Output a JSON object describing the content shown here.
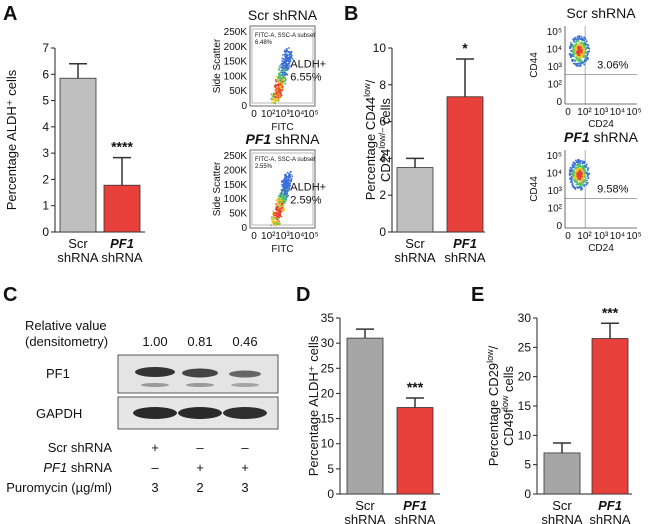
{
  "panels": {
    "A": "A",
    "B": "B",
    "C": "C",
    "D": "D",
    "E": "E"
  },
  "chart_data": [
    {
      "id": "A",
      "type": "bar",
      "ylabel": "Percentage ALDH⁺ cells",
      "ylim": [
        0,
        7
      ],
      "yticks": [
        "0",
        "1",
        "2",
        "3",
        "4",
        "5",
        "6",
        "7"
      ],
      "categories": [
        {
          "line1": "Scr",
          "line2": "shRNA",
          "italic": false
        },
        {
          "line1": "PF1",
          "line2": "shRNA",
          "italic": true
        }
      ],
      "values": [
        5.85,
        1.78
      ],
      "errors": [
        0.55,
        1.05
      ],
      "colors": [
        "#bfbfbf",
        "#e8403a"
      ],
      "significance": [
        "",
        "****"
      ]
    },
    {
      "id": "B",
      "type": "bar",
      "ylabel_parts": [
        "Percentage CD44",
        "low",
        "/",
        "CD24",
        "low/–",
        " cells"
      ],
      "ylim": [
        0,
        10
      ],
      "yticks": [
        "0",
        "2",
        "4",
        "6",
        "8",
        "10"
      ],
      "categories": [
        {
          "line1": "Scr",
          "line2": "shRNA",
          "italic": false
        },
        {
          "line1": "PF1",
          "line2": "shRNA",
          "italic": true
        }
      ],
      "values": [
        3.5,
        7.35
      ],
      "errors": [
        0.5,
        2.05
      ],
      "colors": [
        "#bfbfbf",
        "#e8403a"
      ],
      "significance": [
        "",
        "*"
      ]
    },
    {
      "id": "D",
      "type": "bar",
      "ylabel": "Percentage ALDH⁺ cells",
      "ylim": [
        0,
        35
      ],
      "yticks": [
        "0",
        "5",
        "10",
        "15",
        "20",
        "25",
        "30",
        "35"
      ],
      "categories": [
        {
          "line1": "Scr",
          "line2": "shRNA",
          "italic": false
        },
        {
          "line1": "PF1",
          "line2": "shRNA",
          "italic": true
        }
      ],
      "values": [
        31.0,
        17.2
      ],
      "errors": [
        1.8,
        1.9
      ],
      "colors": [
        "#a6a6a6",
        "#e8403a"
      ],
      "significance": [
        "",
        "***"
      ]
    },
    {
      "id": "E",
      "type": "bar",
      "ylabel_parts": [
        "Percentage CD29",
        "low",
        "/",
        "CD49f",
        "low",
        " cells"
      ],
      "ylim": [
        0,
        30
      ],
      "yticks": [
        "0",
        "5",
        "10",
        "15",
        "20",
        "25",
        "30"
      ],
      "categories": [
        {
          "line1": "Scr",
          "line2": "shRNA",
          "italic": false
        },
        {
          "line1": "PF1",
          "line2": "shRNA",
          "italic": true
        }
      ],
      "values": [
        7.0,
        26.5
      ],
      "errors": [
        1.7,
        2.6
      ],
      "colors": [
        "#a6a6a6",
        "#e8403a"
      ],
      "significance": [
        "",
        "***"
      ]
    }
  ],
  "flow_A": {
    "plots": [
      {
        "title": "Scr shRNA",
        "title_italic_part": "",
        "gate_label": "ALDH+",
        "gate_value": "6.55%",
        "gate_text1": "FITC-A, SSC-A subset",
        "gate_text2": "6.48%"
      },
      {
        "title": " shRNA",
        "title_italic_part": "PF1",
        "gate_label": "ALDH+",
        "gate_value": "2.59%",
        "gate_text1": "FITC-A, SSC-A subset",
        "gate_text2": "2.55%"
      }
    ],
    "ylabel": "Side Scatter",
    "xlabel": "FITC",
    "yticks": [
      "0",
      "50K",
      "100K",
      "150K",
      "200K",
      "250K"
    ],
    "xticks": [
      "0",
      "10²",
      "10³",
      "10⁴",
      "10⁵"
    ]
  },
  "flow_B": {
    "plots": [
      {
        "title": "Scr shRNA",
        "title_italic_part": "",
        "value": "3.06%"
      },
      {
        "title": " shRNA",
        "title_italic_part": "PF1",
        "value": "9.58%"
      }
    ],
    "ylabel": "CD44",
    "xlabel": "CD24",
    "yticks": [
      "0",
      "10²",
      "10³",
      "10⁴",
      "10⁵"
    ],
    "xticks": [
      "0",
      "10²",
      "10³",
      "10⁴",
      "10⁵"
    ]
  },
  "blot": {
    "relative_label_line1": "Relative value",
    "relative_label_line2": "(densitometry)",
    "relative_values": [
      "1.00",
      "0.81",
      "0.46"
    ],
    "bands": [
      "PF1",
      "GAPDH"
    ],
    "rows": [
      {
        "label": "Scr shRNA",
        "italic_part": "",
        "values": [
          "+",
          "–",
          "–"
        ]
      },
      {
        "label": " shRNA",
        "italic_part": "PF1",
        "values": [
          "–",
          "+",
          "+"
        ]
      },
      {
        "label": "Puromycin (µg/ml)",
        "italic_part": "",
        "values": [
          "3",
          "2",
          "3"
        ]
      }
    ]
  }
}
